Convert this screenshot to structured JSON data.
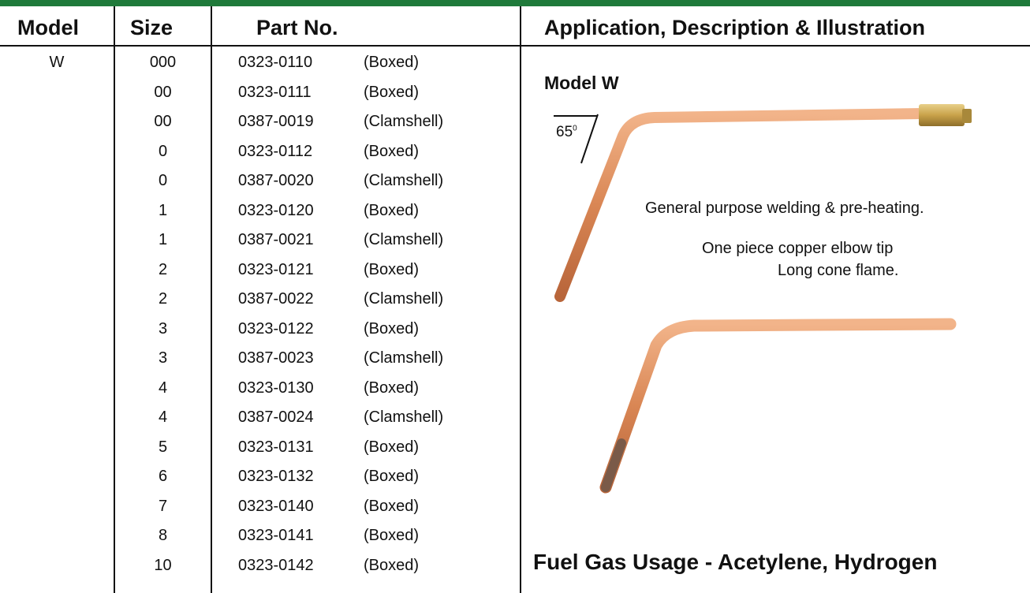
{
  "header": {
    "columns": [
      "Model",
      "Size",
      "Part No.",
      "Application, Description & Illustration"
    ]
  },
  "table": {
    "model": "W",
    "rows": [
      {
        "size": "000",
        "part_no": "0323-0110",
        "package": "(Boxed)"
      },
      {
        "size": "00",
        "part_no": "0323-0111",
        "package": "(Boxed)"
      },
      {
        "size": "00",
        "part_no": "0387-0019",
        "package": "(Clamshell)"
      },
      {
        "size": "0",
        "part_no": "0323-0112",
        "package": "(Boxed)"
      },
      {
        "size": "0",
        "part_no": "0387-0020",
        "package": "(Clamshell)"
      },
      {
        "size": "1",
        "part_no": "0323-0120",
        "package": "(Boxed)"
      },
      {
        "size": "1",
        "part_no": "0387-0021",
        "package": "(Clamshell)"
      },
      {
        "size": "2",
        "part_no": "0323-0121",
        "package": "(Boxed)"
      },
      {
        "size": "2",
        "part_no": "0387-0022",
        "package": "(Clamshell)"
      },
      {
        "size": "3",
        "part_no": "0323-0122",
        "package": "(Boxed)"
      },
      {
        "size": "3",
        "part_no": "0387-0023",
        "package": "(Clamshell)"
      },
      {
        "size": "4",
        "part_no": "0323-0130",
        "package": "(Boxed)"
      },
      {
        "size": "4",
        "part_no": "0387-0024",
        "package": "(Clamshell)"
      },
      {
        "size": "5",
        "part_no": "0323-0131",
        "package": "(Boxed)"
      },
      {
        "size": "6",
        "part_no": "0323-0132",
        "package": "(Boxed)"
      },
      {
        "size": "7",
        "part_no": "0323-0140",
        "package": "(Boxed)"
      },
      {
        "size": "8",
        "part_no": "0323-0141",
        "package": "(Boxed)"
      },
      {
        "size": "10",
        "part_no": "0323-0142",
        "package": "(Boxed)"
      }
    ]
  },
  "description": {
    "title": "Model W",
    "angle": "65",
    "angle_sup": "0",
    "purpose": "General purpose welding & pre-heating.",
    "details": [
      "One piece copper elbow tip",
      "Long cone flame."
    ],
    "fuel": "Fuel Gas Usage - Acetylene, Hydrogen"
  }
}
